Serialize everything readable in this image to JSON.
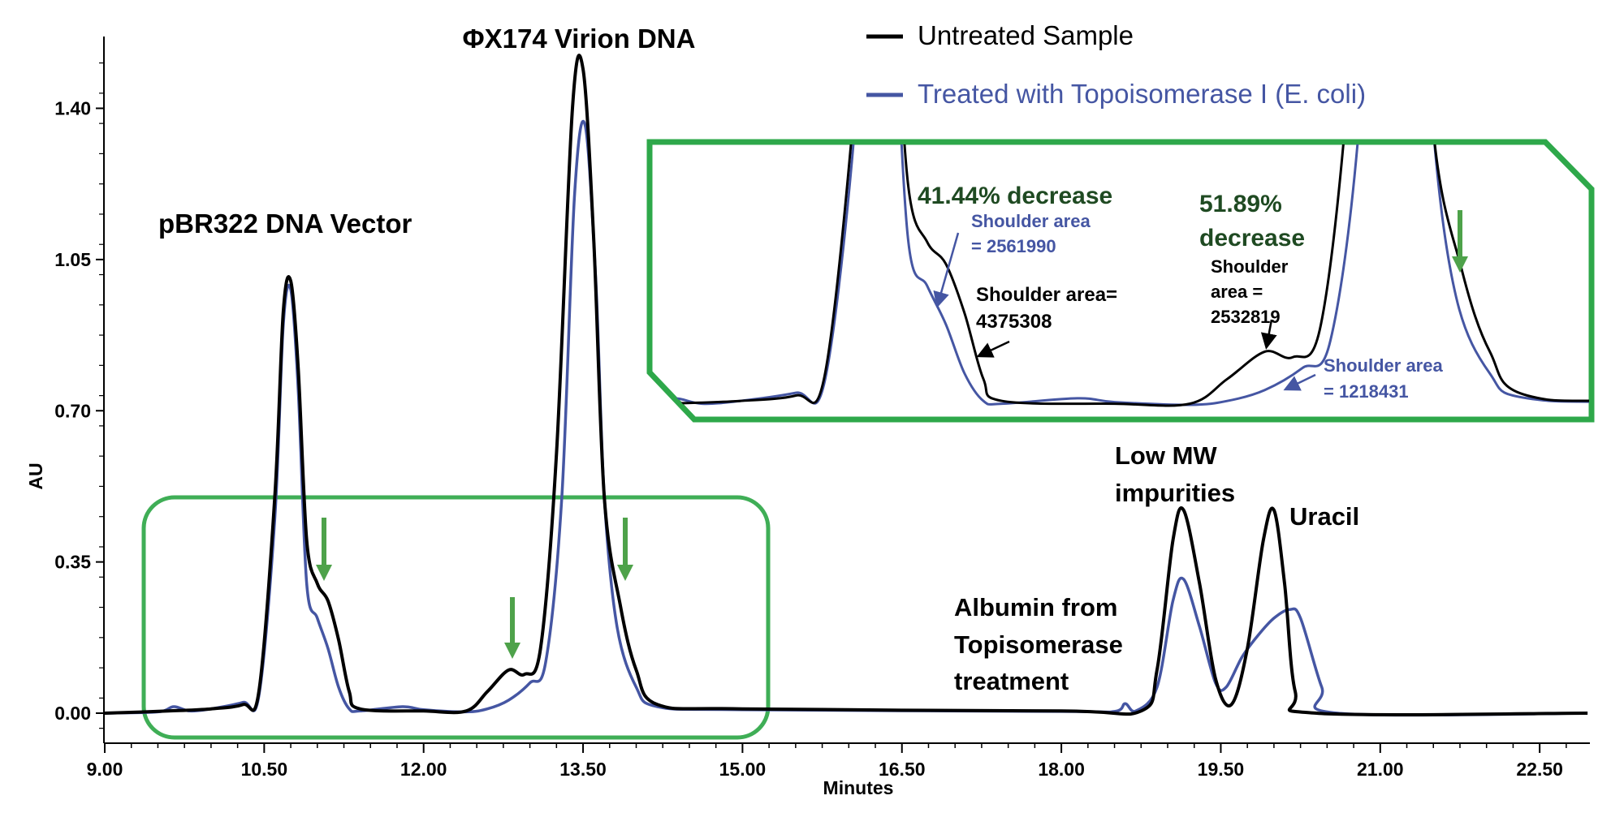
{
  "chart_data": {
    "type": "line",
    "xlabel": "Minutes",
    "ylabel": "AU",
    "xlim": [
      9.0,
      22.95
    ],
    "ylim": [
      -0.07,
      1.56
    ],
    "x_ticks": [
      "9.00",
      "10.50",
      "12.00",
      "13.50",
      "15.00",
      "16.50",
      "18.00",
      "19.50",
      "21.00",
      "22.50"
    ],
    "x_tick_values": [
      9.0,
      10.5,
      12.0,
      13.5,
      15.0,
      16.5,
      18.0,
      19.5,
      21.0,
      22.5
    ],
    "y_ticks": [
      "0.00",
      "0.35",
      "0.70",
      "1.05",
      "1.40"
    ],
    "y_tick_values": [
      0,
      0.35,
      0.7,
      1.05,
      1.4
    ],
    "grid": false,
    "legend_position": "top-right",
    "series": [
      {
        "name": "Untreated Sample",
        "color": "#000000",
        "x": [
          9.0,
          9.6,
          10.0,
          10.3,
          10.45,
          10.6,
          10.68,
          10.75,
          10.82,
          10.9,
          11.0,
          11.1,
          11.2,
          11.3,
          11.4,
          12.0,
          12.4,
          12.6,
          12.8,
          12.95,
          13.1,
          13.25,
          13.4,
          13.5,
          13.6,
          13.7,
          13.85,
          14.0,
          14.2,
          15.0,
          18.0,
          18.75,
          18.9,
          19.05,
          19.15,
          19.3,
          19.45,
          19.6,
          19.75,
          19.9,
          20.0,
          20.1,
          20.2,
          20.4,
          22.95
        ],
        "y": [
          0,
          0.005,
          0.01,
          0.02,
          0.05,
          0.5,
          0.93,
          1.0,
          0.8,
          0.4,
          0.3,
          0.26,
          0.17,
          0.05,
          0.01,
          0.005,
          0.005,
          0.05,
          0.1,
          0.09,
          0.15,
          0.6,
          1.4,
          1.49,
          1.1,
          0.5,
          0.25,
          0.1,
          0.02,
          0.01,
          0.005,
          0.005,
          0.1,
          0.4,
          0.47,
          0.3,
          0.08,
          0.02,
          0.15,
          0.4,
          0.47,
          0.3,
          0.05,
          0.0,
          0.0
        ]
      },
      {
        "name": "Treated with Topoisomerase I (E. coli)",
        "color": "#4556a3",
        "x": [
          9.0,
          9.5,
          9.65,
          9.8,
          10.0,
          10.3,
          10.45,
          10.6,
          10.68,
          10.75,
          10.82,
          10.9,
          11.0,
          11.1,
          11.2,
          11.3,
          11.4,
          11.8,
          12.0,
          12.4,
          12.6,
          12.8,
          13.0,
          13.15,
          13.3,
          13.42,
          13.52,
          13.62,
          13.7,
          13.82,
          14.0,
          14.2,
          15.0,
          18.0,
          18.5,
          18.6,
          18.7,
          18.9,
          19.05,
          19.15,
          19.3,
          19.45,
          19.55,
          19.7,
          19.85,
          20.0,
          20.15,
          20.25,
          20.45,
          20.6,
          22.95
        ],
        "y": [
          0,
          0.003,
          0.015,
          0.005,
          0.01,
          0.025,
          0.04,
          0.45,
          0.9,
          0.98,
          0.75,
          0.3,
          0.22,
          0.15,
          0.06,
          0.01,
          0.005,
          0.015,
          0.008,
          0.003,
          0.01,
          0.03,
          0.07,
          0.12,
          0.5,
          1.2,
          1.36,
          1.0,
          0.5,
          0.2,
          0.06,
          0.015,
          0.008,
          0.004,
          0.004,
          0.022,
          0.005,
          0.06,
          0.26,
          0.31,
          0.2,
          0.07,
          0.06,
          0.13,
          0.18,
          0.22,
          0.24,
          0.22,
          0.06,
          0.0,
          0.0
        ]
      }
    ]
  },
  "legend": {
    "untreated": "Untreated Sample",
    "treated": "Treated with Topoisomerase I (E. coli)"
  },
  "annotations": {
    "phix": "ΦX174 Virion DNA",
    "pbr": "pBR322 DNA Vector",
    "lowmw_1": "Low MW",
    "lowmw_2": "impurities",
    "uracil": "Uracil",
    "albumin_1": "Albumin from",
    "albumin_2": "Topisomerase",
    "albumin_3": "treatment"
  },
  "inset": {
    "decrease_1": "41.44% decrease",
    "treated_area_1a": "Shoulder area",
    "treated_area_1b": "= 2561990",
    "untreated_area_1a": "Shoulder area=",
    "untreated_area_1b": "4375308",
    "decrease_2a": "51.89%",
    "decrease_2b": "decrease",
    "untreated_area_2a": "Shoulder",
    "untreated_area_2b": "area =",
    "untreated_area_2c": "2532819",
    "treated_area_2a": "Shoulder area",
    "treated_area_2b": "= 1218431"
  },
  "colors": {
    "untreated": "#000000",
    "treated": "#4556a3",
    "highlight": "#2ea84a",
    "arrow": "#4ea24a",
    "decrease_text": "#1f4a22"
  }
}
